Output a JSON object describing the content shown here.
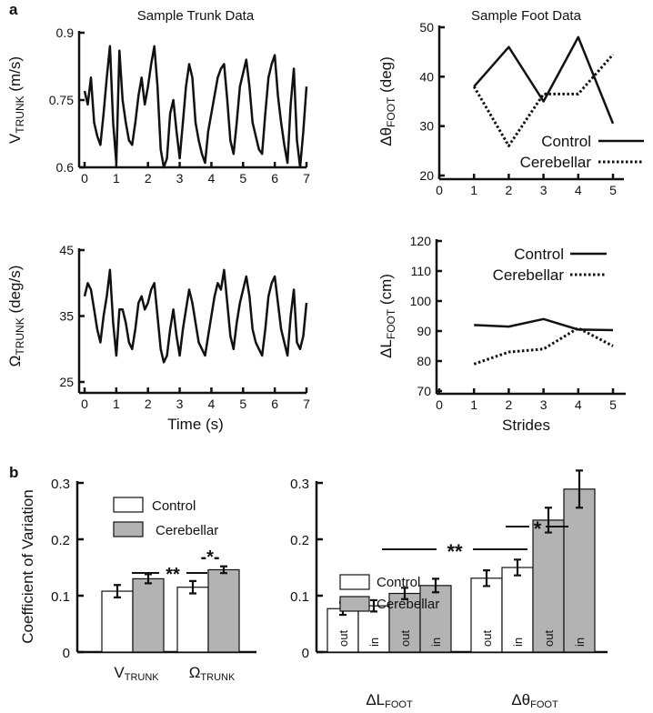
{
  "panel_labels": {
    "a": "a",
    "b": "b"
  },
  "chart_data": [
    {
      "id": "trunk-velocity",
      "type": "line",
      "title": "Sample Trunk Data",
      "xlabel": "",
      "ylabel_main": "V",
      "ylabel_sub": "TRUNK",
      "ylabel_unit": " (m/s)",
      "xlim": [
        0,
        7
      ],
      "ylim": [
        0.6,
        0.9
      ],
      "xticks": [
        "0",
        "1",
        "2",
        "3",
        "4",
        "5",
        "6",
        "7"
      ],
      "yticks": [
        "0.6",
        "0.75",
        "0.9"
      ],
      "x_step": 0.1,
      "values": [
        0.77,
        0.74,
        0.8,
        0.7,
        0.67,
        0.65,
        0.72,
        0.8,
        0.87,
        0.7,
        0.61,
        0.86,
        0.75,
        0.7,
        0.66,
        0.65,
        0.7,
        0.76,
        0.8,
        0.74,
        0.78,
        0.83,
        0.87,
        0.78,
        0.64,
        0.6,
        0.62,
        0.72,
        0.75,
        0.68,
        0.62,
        0.7,
        0.78,
        0.83,
        0.8,
        0.7,
        0.66,
        0.63,
        0.61,
        0.68,
        0.72,
        0.76,
        0.8,
        0.82,
        0.83,
        0.75,
        0.66,
        0.63,
        0.7,
        0.78,
        0.81,
        0.84,
        0.78,
        0.7,
        0.67,
        0.64,
        0.63,
        0.72,
        0.8,
        0.83,
        0.85,
        0.76,
        0.7,
        0.65,
        0.61,
        0.74,
        0.82,
        0.66,
        0.6,
        0.68,
        0.78
      ]
    },
    {
      "id": "trunk-angular",
      "type": "line",
      "title": "",
      "xlabel": "Time (s)",
      "ylabel_main": "Ω",
      "ylabel_sub": "TRUNK",
      "ylabel_unit": " (deg/s)",
      "xlim": [
        0,
        7
      ],
      "ylim": [
        25,
        45
      ],
      "xticks": [
        "0",
        "1",
        "2",
        "3",
        "4",
        "5",
        "6",
        "7"
      ],
      "yticks": [
        "25",
        "35",
        "45"
      ],
      "x_step": 0.1,
      "values": [
        38,
        40,
        39,
        36,
        33,
        31,
        35,
        38,
        42,
        34,
        29,
        36,
        36,
        34,
        31,
        30,
        33,
        37,
        38,
        36,
        37,
        39,
        40,
        35,
        30,
        28,
        29,
        33,
        36,
        32,
        29,
        33,
        36,
        39,
        37,
        34,
        31,
        30,
        29,
        32,
        35,
        38,
        40,
        39,
        42,
        37,
        32,
        30,
        34,
        37,
        39,
        41,
        38,
        33,
        31,
        30,
        29,
        33,
        38,
        40,
        41,
        37,
        33,
        31,
        29,
        35,
        39,
        31,
        30,
        32,
        37
      ]
    },
    {
      "id": "foot-angle",
      "type": "line",
      "title": "Sample Foot Data",
      "xlabel": "",
      "ylabel_main": "Δθ",
      "ylabel_sub": "FOOT",
      "ylabel_unit": " (deg)",
      "xlim": [
        0,
        5
      ],
      "ylim": [
        20,
        50
      ],
      "xticks": [
        "0",
        "1",
        "2",
        "3",
        "4",
        "5"
      ],
      "yticks": [
        "20",
        "30",
        "40",
        "50"
      ],
      "x": [
        1,
        2,
        3,
        4,
        5
      ],
      "series": [
        {
          "name": "Control",
          "values": [
            38,
            46,
            35,
            48,
            30.5
          ]
        },
        {
          "name": "Cerebellar",
          "values": [
            38,
            26,
            36.5,
            36.5,
            44.5
          ]
        }
      ],
      "legend": "bottom-right"
    },
    {
      "id": "foot-length",
      "type": "line",
      "title": "",
      "xlabel": "Strides",
      "ylabel_main": "ΔL",
      "ylabel_sub": "FOOT",
      "ylabel_unit": " (cm)",
      "xlim": [
        0,
        5
      ],
      "ylim": [
        70,
        120
      ],
      "xticks": [
        "0",
        "1",
        "2",
        "3",
        "4",
        "5"
      ],
      "yticks": [
        "70",
        "80",
        "90",
        "100",
        "110",
        "120"
      ],
      "x": [
        1,
        2,
        3,
        4,
        5
      ],
      "series": [
        {
          "name": "Control",
          "values": [
            92,
            91.5,
            94,
            90.5,
            90.3
          ]
        },
        {
          "name": "Cerebellar",
          "values": [
            79,
            83,
            84,
            91,
            85
          ]
        }
      ],
      "legend": "top"
    },
    {
      "id": "cov-trunk",
      "type": "bar",
      "ylabel": "Coefficient of Variation",
      "ylim": [
        0,
        0.3
      ],
      "yticks": [
        "0",
        "0.1",
        "0.2",
        "0.3"
      ],
      "groups": [
        {
          "main": "V",
          "sub": "TRUNK"
        },
        {
          "main": "Ω",
          "sub": "TRUNK"
        }
      ],
      "series": [
        {
          "name": "Control",
          "color": "#ffffff",
          "values": [
            0.108,
            0.115
          ],
          "errors": [
            0.011,
            0.011
          ]
        },
        {
          "name": "Cerebellar",
          "color": "#b3b3b3",
          "values": [
            0.13,
            0.146
          ],
          "errors": [
            0.008,
            0.006
          ]
        }
      ],
      "annotations": [
        "**",
        "-*-"
      ]
    },
    {
      "id": "cov-foot",
      "type": "bar",
      "ylim": [
        0,
        0.3
      ],
      "yticks": [
        "0",
        "0.1",
        "0.2",
        "0.3"
      ],
      "groups": [
        {
          "main": "ΔL",
          "sub": "FOOT"
        },
        {
          "main": "Δθ",
          "sub": "FOOT"
        }
      ],
      "bars": [
        {
          "group": 0,
          "series": "Control",
          "label": "out",
          "value": 0.077,
          "error": 0.011
        },
        {
          "group": 0,
          "series": "Control",
          "label": "in",
          "value": 0.082,
          "error": 0.01
        },
        {
          "group": 0,
          "series": "Cerebellar",
          "label": "out",
          "value": 0.104,
          "error": 0.01
        },
        {
          "group": 0,
          "series": "Cerebellar",
          "label": "in",
          "value": 0.118,
          "error": 0.012
        },
        {
          "group": 1,
          "series": "Control",
          "label": "out",
          "value": 0.131,
          "error": 0.014
        },
        {
          "group": 1,
          "series": "Control",
          "label": "in",
          "value": 0.15,
          "error": 0.014
        },
        {
          "group": 1,
          "series": "Cerebellar",
          "label": "out",
          "value": 0.234,
          "error": 0.022
        },
        {
          "group": 1,
          "series": "Cerebellar",
          "label": "in",
          "value": 0.289,
          "error": 0.033
        }
      ],
      "legend": [
        "Control",
        "Cerebellar"
      ],
      "annotations": [
        "**",
        "*"
      ]
    }
  ]
}
